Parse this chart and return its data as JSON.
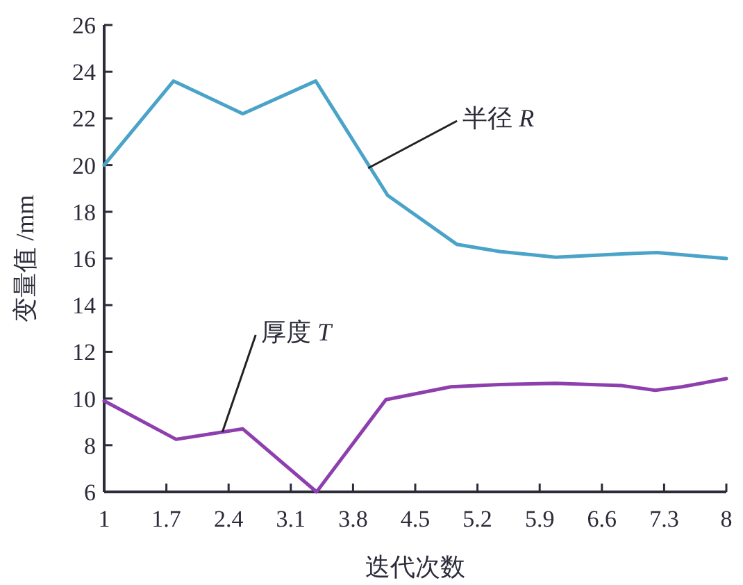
{
  "chart_data": {
    "type": "line",
    "xlabel": "迭代次数",
    "ylabel": "变量值 /mm",
    "xlim": [
      1,
      8
    ],
    "ylim": [
      6,
      26
    ],
    "xticks": [
      1,
      1.7,
      2.4,
      3.1,
      3.8,
      4.5,
      5.2,
      5.9,
      6.6,
      7.3,
      8
    ],
    "yticks": [
      6,
      8,
      10,
      12,
      14,
      16,
      18,
      20,
      22,
      24,
      26
    ],
    "grid": false,
    "marker": "none",
    "line_style": "solid",
    "series": [
      {
        "color": "#4aa3c8",
        "x": [
          1,
          1.78,
          2.56,
          3.38,
          4.19,
          4.97,
          5.45,
          6.08,
          6.86,
          7.22,
          8
        ],
        "values": [
          20.0,
          23.6,
          22.2,
          23.6,
          18.7,
          16.6,
          16.3,
          16.05,
          16.2,
          16.25,
          16.0
        ]
      },
      {
        "color": "#8e3fae",
        "x": [
          1,
          1.81,
          2.56,
          3.39,
          4.17,
          4.9,
          5.45,
          6.08,
          6.83,
          7.2,
          7.5,
          8
        ],
        "values": [
          9.9,
          8.25,
          8.7,
          6.0,
          9.95,
          10.5,
          10.6,
          10.65,
          10.55,
          10.35,
          10.5,
          10.85
        ]
      }
    ],
    "annotations": [
      {
        "text": "半径 *R*",
        "x": 3.97,
        "y": 19.87
      },
      {
        "text": "厚度 *T*",
        "x": 2.33,
        "y": 8.56
      }
    ]
  }
}
